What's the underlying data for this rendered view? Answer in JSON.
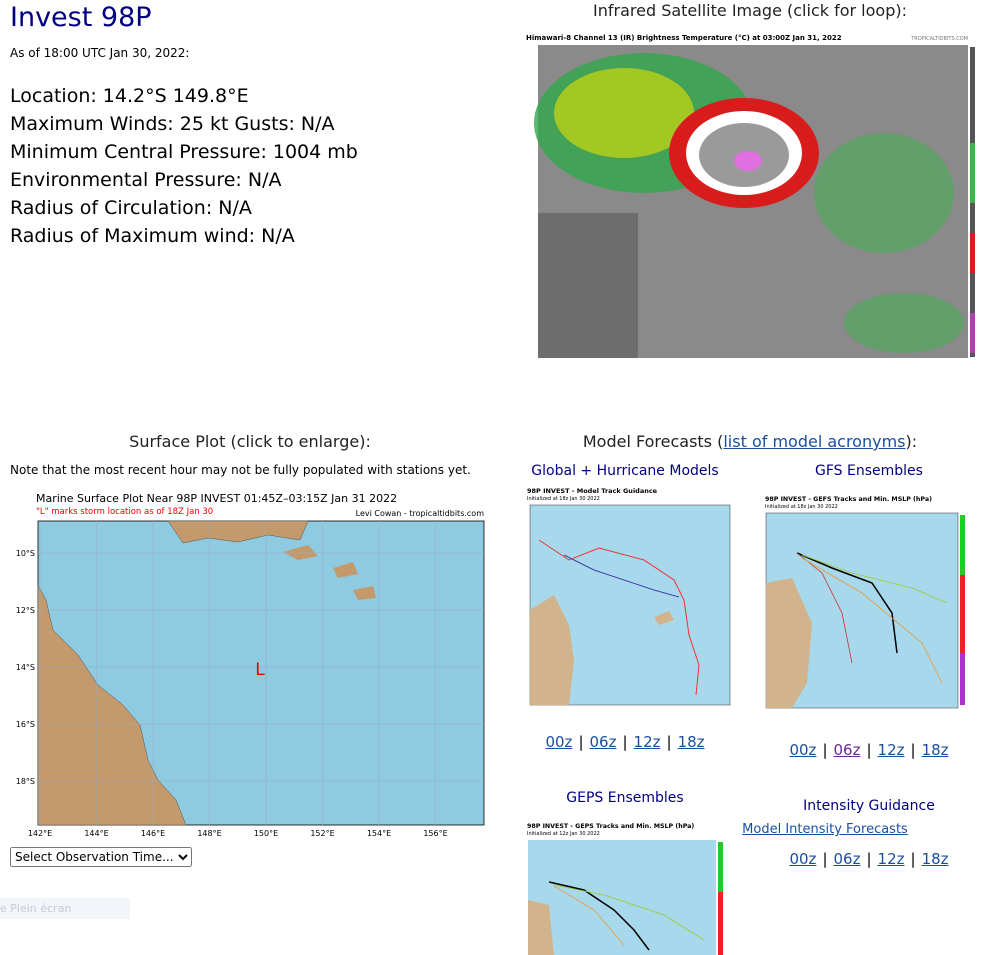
{
  "header": {
    "title": "Invest 98P",
    "as_of": "As of 18:00 UTC Jan 30, 2022:"
  },
  "info": [
    "Location: 14.2°S 149.8°E",
    "Maximum Winds: 25 kt  Gusts: N/A",
    "Minimum Central Pressure: 1004 mb",
    "Environmental Pressure: N/A",
    "Radius of Circulation: N/A",
    "Radius of Maximum wind: N/A"
  ],
  "satellite": {
    "heading": "Infrared Satellite Image (click for loop):",
    "image_title": "Himawari-8 Channel 13 (IR) Brightness Temperature (°C) at 03:00Z Jan 31, 2022",
    "credit": "TROPICALTIDBITS.COM"
  },
  "surface": {
    "heading": "Surface Plot (click to enlarge):",
    "note": "Note that the most recent hour may not be fully populated with stations yet.",
    "image_title": "Marine Surface Plot Near 98P INVEST 01:45Z–03:15Z Jan 31 2022",
    "image_subtitle": "\"L\" marks storm location as of 18Z Jan 30",
    "credit": "Levi Cowan - tropicaltidbits.com",
    "marker": "L",
    "lat_labels": [
      "10°S",
      "12°S",
      "14°S",
      "16°S",
      "18°S"
    ],
    "lon_labels": [
      "142°E",
      "144°E",
      "146°E",
      "148°E",
      "150°E",
      "152°E",
      "154°E",
      "156°E"
    ],
    "select": "Select Observation Time...",
    "fullscreen": "e Plein écran"
  },
  "models": {
    "heading_pre": "Model Forecasts (",
    "heading_link": "list of model acronyms",
    "heading_post": "):",
    "separator": "|",
    "global": {
      "title": "Global + Hurricane Models",
      "image_title": "98P INVEST - Model Track Guidance",
      "image_sub": "Initialized at 18z Jan 30 2022",
      "links": [
        "00z",
        "06z",
        "12z",
        "18z"
      ]
    },
    "gefs": {
      "title": "GFS Ensembles",
      "image_title": "98P INVEST - GEFS Tracks and Min. MSLP (hPa)",
      "image_sub": "Initialized at 18z Jan 30 2022",
      "links": [
        "00z",
        "06z",
        "12z",
        "18z"
      ]
    },
    "geps": {
      "title": "GEPS Ensembles",
      "image_title": "98P INVEST - GEPS Tracks and Min. MSLP (hPa)",
      "image_sub": "Initialized at 12z Jan 30 2022"
    },
    "intensity": {
      "title": "Intensity Guidance",
      "link": "Model Intensity Forecasts",
      "links": [
        "00z",
        "06z",
        "12z",
        "18z"
      ]
    }
  }
}
